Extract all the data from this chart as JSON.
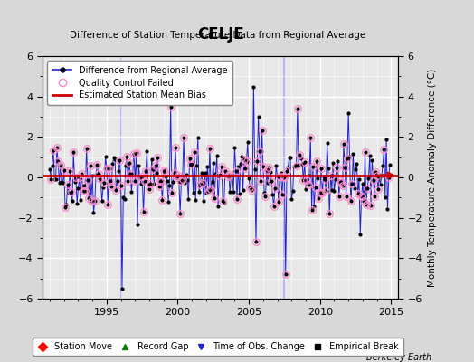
{
  "title": "CELJE",
  "subtitle": "Difference of Station Temperature Data from Regional Average",
  "ylabel": "Monthly Temperature Anomaly Difference (°C)",
  "xlim": [
    1990.5,
    2015.5
  ],
  "ylim": [
    -6,
    6
  ],
  "yticks": [
    -6,
    -4,
    -2,
    0,
    2,
    4,
    6
  ],
  "xticks": [
    1995,
    2000,
    2005,
    2010,
    2015
  ],
  "bias_value": 0.1,
  "time_obs_change_years": [
    1996.0
  ],
  "empirical_break_years": [
    2007.5
  ],
  "bg_color": "#d8d8d8",
  "plot_bg_color": "#e8e8e8",
  "line_color": "#2222cc",
  "qc_color": "#ff88cc",
  "bias_color": "#cc0000",
  "vline_color": "#aaaaff",
  "seed": 42,
  "qc_seed": 99,
  "n_months": 288,
  "year_start": 1991.0,
  "year_end": 2014.92
}
